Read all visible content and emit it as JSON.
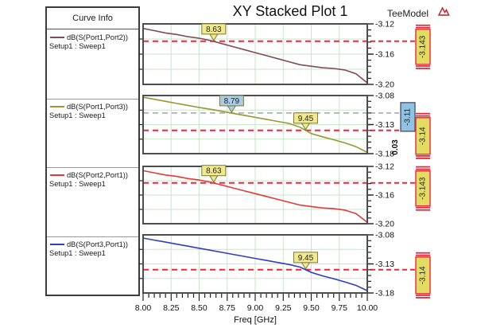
{
  "title": "XY Stacked Plot 1",
  "subtitle": "TeeModel",
  "logo_icon": "ansys-logo",
  "legend": {
    "header": "Curve Info",
    "sweep_label": "Setup1 : Sweep1",
    "entries": [
      {
        "label": "dB(S(Port1,Port2))",
        "sub": "Setup1 : Sweep1",
        "color": "#824a56"
      },
      {
        "label": "dB(S(Port1,Port3))",
        "sub": "Setup1 : Sweep1",
        "color": "#97982f"
      },
      {
        "label": "dB(S(Port2,Port1))",
        "sub": "Setup1 : Sweep1",
        "color": "#e23b3b"
      },
      {
        "label": "dB(S(Port3,Port1))",
        "sub": "Setup1 : Sweep1",
        "color": "#2f3fc0"
      }
    ]
  },
  "xaxis": {
    "label": "Freq [GHz]",
    "min": 8.0,
    "max": 10.0,
    "major_step": 0.25,
    "minor_step": 0.05,
    "tick_labels": [
      "8.00",
      "8.25",
      "8.50",
      "8.75",
      "9.00",
      "9.25",
      "9.50",
      "9.75",
      "10.00"
    ]
  },
  "colors": {
    "grid": "#c9e6c9",
    "border": "#4d4d4d",
    "ref_red": "#e8293b",
    "ref_gray": "#9a9a9a",
    "marker_yellow": "#f2ea8e",
    "marker_blue": "#a9cce9",
    "marker_border": "#7a7a3a",
    "box_yellow": "#e3dc63",
    "box_blue": "#8fc3e4"
  },
  "chart_data": [
    {
      "type": "line",
      "name": "dB(S(Port1,Port2))",
      "color": "#824a56",
      "ylim": [
        -3.2,
        -3.12
      ],
      "yticks": [
        -3.12,
        -3.16,
        -3.2
      ],
      "ytick_labels": [
        "-3.12",
        "-3.16",
        "-3.20"
      ],
      "grid_y": [
        -3.14,
        -3.16,
        -3.18
      ],
      "ref_lines": [
        {
          "y": -3.143,
          "style": "red"
        }
      ],
      "markers": [
        {
          "x": 8.63,
          "y": -3.143,
          "label": "8.63",
          "style": "yellow"
        }
      ],
      "value_boxes": [
        {
          "text": "-3.143",
          "y": -3.143,
          "style": "yellow"
        }
      ],
      "x": [
        8.0,
        8.1,
        8.2,
        8.3,
        8.4,
        8.5,
        8.6,
        8.7,
        8.8,
        8.9,
        9.0,
        9.1,
        9.2,
        9.3,
        9.4,
        9.5,
        9.6,
        9.7,
        9.8,
        9.9,
        10.0
      ],
      "y": [
        -3.126,
        -3.129,
        -3.132,
        -3.134,
        -3.137,
        -3.139,
        -3.142,
        -3.146,
        -3.15,
        -3.154,
        -3.158,
        -3.162,
        -3.166,
        -3.17,
        -3.174,
        -3.176,
        -3.178,
        -3.179,
        -3.181,
        -3.186,
        -3.198
      ]
    },
    {
      "type": "line",
      "name": "dB(S(Port1,Port3))",
      "color": "#97982f",
      "ylim": [
        -3.18,
        -3.08
      ],
      "yticks": [
        -3.08,
        -3.13,
        -3.18
      ],
      "ytick_labels": [
        "-3.08",
        "-3.13",
        "-3.18"
      ],
      "grid_y": [
        -3.105,
        -3.13,
        -3.155
      ],
      "ref_lines": [
        {
          "y": -3.11,
          "style": "gray"
        },
        {
          "y": -3.14,
          "style": "red"
        }
      ],
      "markers": [
        {
          "x": 8.79,
          "y": -3.11,
          "label": "8.79",
          "style": "blue"
        },
        {
          "x": 9.45,
          "y": -3.14,
          "label": "9.45",
          "style": "yellow"
        }
      ],
      "value_boxes": [
        {
          "text": "-3.11",
          "y": -3.11,
          "style": "blue"
        },
        {
          "text": "-3.14",
          "y": -3.14,
          "style": "yellow"
        }
      ],
      "delta_label": "0.03",
      "x": [
        8.0,
        8.1,
        8.2,
        8.3,
        8.4,
        8.5,
        8.6,
        8.7,
        8.8,
        8.9,
        9.0,
        9.1,
        9.2,
        9.3,
        9.4,
        9.5,
        9.6,
        9.7,
        9.8,
        9.9,
        10.0
      ],
      "y": [
        -3.083,
        -3.0865,
        -3.09,
        -3.0935,
        -3.097,
        -3.1005,
        -3.1035,
        -3.107,
        -3.1105,
        -3.114,
        -3.1175,
        -3.121,
        -3.1245,
        -3.128,
        -3.1345,
        -3.1455,
        -3.151,
        -3.156,
        -3.1615,
        -3.168,
        -3.178
      ]
    },
    {
      "type": "line",
      "name": "dB(S(Port2,Port1))",
      "color": "#e23b3b",
      "ylim": [
        -3.2,
        -3.12
      ],
      "yticks": [
        -3.12,
        -3.16,
        -3.2
      ],
      "ytick_labels": [
        "-3.12",
        "-3.16",
        "-3.20"
      ],
      "grid_y": [
        -3.14,
        -3.16,
        -3.18
      ],
      "ref_lines": [
        {
          "y": -3.143,
          "style": "red"
        }
      ],
      "markers": [
        {
          "x": 8.63,
          "y": -3.143,
          "label": "8.63",
          "style": "yellow"
        }
      ],
      "value_boxes": [
        {
          "text": "-3.143",
          "y": -3.143,
          "style": "yellow"
        }
      ],
      "x": [
        8.0,
        8.1,
        8.2,
        8.3,
        8.4,
        8.5,
        8.6,
        8.7,
        8.8,
        8.9,
        9.0,
        9.1,
        9.2,
        9.3,
        9.4,
        9.5,
        9.6,
        9.7,
        9.8,
        9.9,
        10.0
      ],
      "y": [
        -3.126,
        -3.129,
        -3.132,
        -3.134,
        -3.137,
        -3.139,
        -3.142,
        -3.146,
        -3.15,
        -3.154,
        -3.158,
        -3.162,
        -3.166,
        -3.17,
        -3.174,
        -3.176,
        -3.178,
        -3.179,
        -3.181,
        -3.186,
        -3.198
      ]
    },
    {
      "type": "line",
      "name": "dB(S(Port3,Port1))",
      "color": "#2f3fc0",
      "ylim": [
        -3.18,
        -3.08
      ],
      "yticks": [
        -3.08,
        -3.13,
        -3.18
      ],
      "ytick_labels": [
        "-3.08",
        "-3.13",
        "-3.18"
      ],
      "grid_y": [
        -3.105,
        -3.13,
        -3.155
      ],
      "ref_lines": [
        {
          "y": -3.14,
          "style": "red"
        }
      ],
      "markers": [
        {
          "x": 9.45,
          "y": -3.14,
          "label": "9.45",
          "style": "yellow"
        }
      ],
      "value_boxes": [
        {
          "text": "-3.14",
          "y": -3.14,
          "style": "yellow"
        }
      ],
      "x": [
        8.0,
        8.1,
        8.2,
        8.3,
        8.4,
        8.5,
        8.6,
        8.7,
        8.8,
        8.9,
        9.0,
        9.1,
        9.2,
        9.3,
        9.4,
        9.5,
        9.6,
        9.7,
        9.8,
        9.9,
        10.0
      ],
      "y": [
        -3.0855,
        -3.089,
        -3.0925,
        -3.096,
        -3.0995,
        -3.103,
        -3.1065,
        -3.11,
        -3.1135,
        -3.117,
        -3.1205,
        -3.124,
        -3.1275,
        -3.131,
        -3.1355,
        -3.1445,
        -3.1505,
        -3.1555,
        -3.161,
        -3.167,
        -3.176
      ]
    }
  ]
}
